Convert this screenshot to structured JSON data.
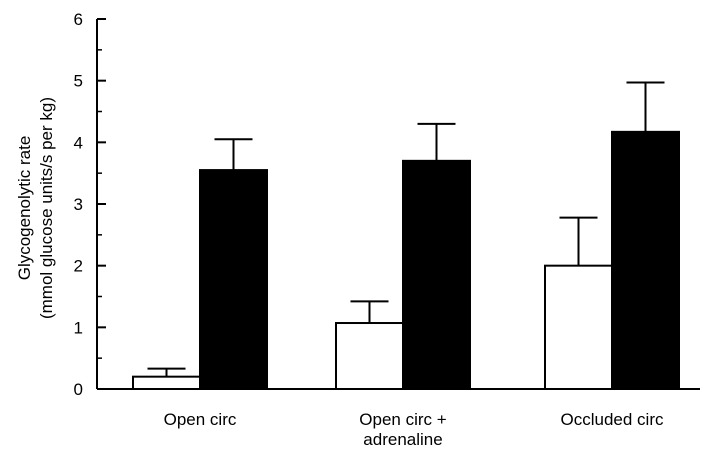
{
  "chart_data": {
    "type": "bar",
    "title": "",
    "xlabel": "",
    "ylabel_lines": [
      "Glycogenolytic rate",
      "(mmol glucose units/s per kg)"
    ],
    "ylim": [
      0,
      6
    ],
    "yticks": [
      "0",
      "1",
      "2",
      "3",
      "4",
      "5",
      "6"
    ],
    "categories": [
      {
        "lines": [
          "Open circ"
        ]
      },
      {
        "lines": [
          "Open circ +",
          "adrenaline"
        ]
      },
      {
        "lines": [
          "Occluded circ"
        ]
      }
    ],
    "series": [
      {
        "values": [
          0.2,
          1.07,
          2.0
        ],
        "errors": [
          0.13,
          0.35,
          0.78
        ],
        "fill": "#ffffff"
      },
      {
        "values": [
          3.55,
          3.7,
          4.17
        ],
        "errors": [
          0.5,
          0.6,
          0.8
        ],
        "fill": "#000000"
      }
    ],
    "grid": false,
    "legend": "none"
  }
}
